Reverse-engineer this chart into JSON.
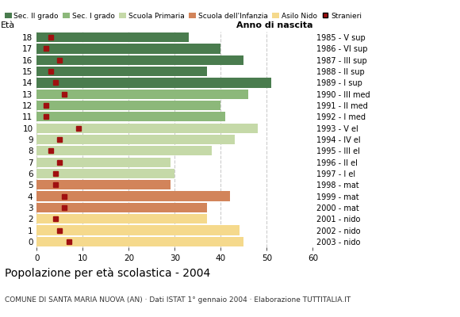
{
  "ages": [
    18,
    17,
    16,
    15,
    14,
    13,
    12,
    11,
    10,
    9,
    8,
    7,
    6,
    5,
    4,
    3,
    2,
    1,
    0
  ],
  "bar_values": [
    33,
    40,
    45,
    37,
    51,
    46,
    40,
    41,
    48,
    43,
    38,
    29,
    30,
    29,
    42,
    37,
    37,
    44,
    45
  ],
  "stranieri": [
    3,
    2,
    5,
    3,
    4,
    6,
    2,
    2,
    9,
    5,
    3,
    5,
    4,
    4,
    6,
    6,
    4,
    5,
    7
  ],
  "anno_nascita": [
    "1985 - V sup",
    "1986 - VI sup",
    "1987 - III sup",
    "1988 - II sup",
    "1989 - I sup",
    "1990 - III med",
    "1991 - II med",
    "1992 - I med",
    "1993 - V el",
    "1994 - IV el",
    "1995 - III el",
    "1996 - II el",
    "1997 - I el",
    "1998 - mat",
    "1999 - mat",
    "2000 - mat",
    "2001 - nido",
    "2002 - nido",
    "2003 - nido"
  ],
  "bar_colors": [
    "#4a7c4e",
    "#4a7c4e",
    "#4a7c4e",
    "#4a7c4e",
    "#4a7c4e",
    "#8cb87a",
    "#8cb87a",
    "#8cb87a",
    "#c5d9a8",
    "#c5d9a8",
    "#c5d9a8",
    "#c5d9a8",
    "#c5d9a8",
    "#d2845a",
    "#d2845a",
    "#d2845a",
    "#f5d98c",
    "#f5d98c",
    "#f5d98c"
  ],
  "legend_labels": [
    "Sec. II grado",
    "Sec. I grado",
    "Scuola Primaria",
    "Scuola dell'Infanzia",
    "Asilo Nido",
    "Stranieri"
  ],
  "legend_colors": [
    "#4a7c4e",
    "#8cb87a",
    "#c5d9a8",
    "#d2845a",
    "#f5d98c",
    "#a01010"
  ],
  "title": "Popolazione per età scolastica - 2004",
  "subtitle": "COMUNE DI SANTA MARIA NUOVA (AN) · Dati ISTAT 1° gennaio 2004 · Elaborazione TUTTITALIA.IT",
  "ylabel_left": "Età",
  "ylabel_right": "Anno di nascita",
  "xlim": [
    0,
    60
  ],
  "xticks": [
    0,
    10,
    20,
    30,
    40,
    50,
    60
  ],
  "stranieri_color": "#a01010",
  "bg_color": "#ffffff",
  "grid_color": "#cccccc"
}
